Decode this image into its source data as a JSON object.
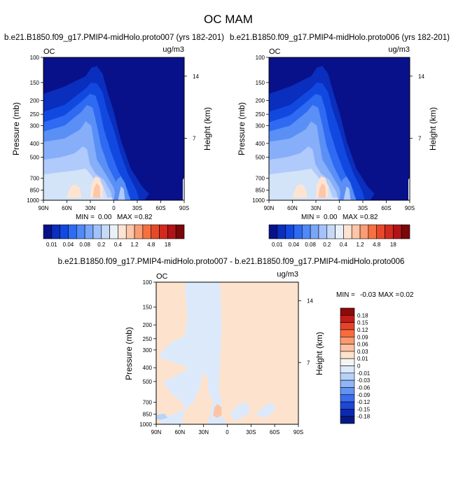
{
  "figure": {
    "title": "OC MAM"
  },
  "chart_data": [
    {
      "type": "heatmap",
      "id": "top-left",
      "title": "b.e21.B1850.f09_g17.PMIP4-midHolo.proto007 (yrs 182-201)",
      "corner_left": "OC",
      "corner_right": "ug/m3",
      "xlabel": "",
      "ylabel": "Pressure (mb)",
      "y2label": "Height (km)",
      "x_ticks": [
        "90N",
        "60N",
        "30N",
        "0",
        "30S",
        "60S",
        "90S"
      ],
      "y_ticks": [
        "100",
        "150",
        "200",
        "250",
        "300",
        "400",
        "500",
        "700",
        "850",
        "1000"
      ],
      "y2_ticks": [
        "14",
        "7"
      ],
      "ylim": [
        1000,
        100
      ],
      "stats": {
        "min_label": "MIN =",
        "min": "0.00",
        "max_label": "MAX =",
        "max": "0.82"
      }
    },
    {
      "type": "heatmap",
      "id": "top-right",
      "title": "b.e21.B1850.f09_g17.PMIP4-midHolo.proto006 (yrs 182-201)",
      "corner_left": "OC",
      "corner_right": "ug/m3",
      "xlabel": "",
      "ylabel": "Pressure (mb)",
      "y2label": "Height (km)",
      "x_ticks": [
        "90N",
        "60N",
        "30N",
        "0",
        "30S",
        "60S",
        "90S"
      ],
      "y_ticks": [
        "100",
        "150",
        "200",
        "250",
        "300",
        "400",
        "500",
        "700",
        "850",
        "1000"
      ],
      "y2_ticks": [
        "14",
        "7"
      ],
      "ylim": [
        1000,
        100
      ],
      "stats": {
        "min_label": "MIN =",
        "min": "0.00",
        "max_label": "MAX =",
        "max": "0.82"
      }
    },
    {
      "type": "heatmap",
      "id": "difference",
      "title": "b.e21.B1850.f09_g17.PMIP4-midHolo.proto007 - b.e21.B1850.f09_g17.PMIP4-midHolo.proto006",
      "corner_left": "OC",
      "corner_right": "ug/m3",
      "xlabel": "",
      "ylabel": "Pressure (mb)",
      "y2label": "Height (km)",
      "x_ticks": [
        "90N",
        "60N",
        "30N",
        "0",
        "30S",
        "60S",
        "90S"
      ],
      "y_ticks": [
        "100",
        "150",
        "200",
        "250",
        "300",
        "400",
        "500",
        "700",
        "850",
        "1000"
      ],
      "y2_ticks": [
        "14",
        "7"
      ],
      "ylim": [
        1000,
        100
      ],
      "stats": {
        "min_label": "MIN =",
        "min": "-0.03",
        "max_label": "MAX =",
        "max": "0.02"
      }
    }
  ],
  "colorbar_top": {
    "labels": [
      "0.01",
      "0.04",
      "0.08",
      "0.2",
      "0.4",
      "1.2",
      "4.8",
      "18"
    ],
    "colors": [
      "#08118a",
      "#0a2ebd",
      "#1149e0",
      "#2f6af2",
      "#5189f6",
      "#7aa6f9",
      "#a3c2fb",
      "#c6daf6",
      "#e9f0f8",
      "#fde4d2",
      "#fcc6a8",
      "#fa9c74",
      "#f5713f",
      "#e8482a",
      "#d22a1f",
      "#b11417",
      "#7a0709"
    ]
  },
  "colorbar_diff": {
    "labels": [
      "0.18",
      "0.15",
      "0.12",
      "0.09",
      "0.06",
      "0.03",
      "0.01",
      "0",
      "-0.01",
      "-0.03",
      "-0.06",
      "-0.09",
      "-0.12",
      "-0.15",
      "-0.18"
    ],
    "colors": [
      "#8b0a0a",
      "#c21d19",
      "#e8432a",
      "#f86c3c",
      "#fb9a6f",
      "#fcc1a2",
      "#fde2cc",
      "#f4f4f4",
      "#dce9fb",
      "#b7d2f8",
      "#8eb5f6",
      "#6292f2",
      "#3b6cee",
      "#1d48d6",
      "#0c2ab1",
      "#061a86"
    ]
  },
  "field_colors": {
    "c0": "#08118a",
    "c1": "#0a2ebd",
    "c2": "#1149e0",
    "c3": "#2f6af2",
    "c4": "#5a8ff6",
    "c5": "#86aef9",
    "c6": "#afcafb",
    "c7": "#d3e3f8",
    "c8": "#fde4d2",
    "c9": "#fbc6a9",
    "diff_pos": "#fde3cd",
    "diff_neg": "#dce9fb",
    "diff_neg2": "#b8d3f8",
    "diff_pos2": "#fbc5a5"
  }
}
